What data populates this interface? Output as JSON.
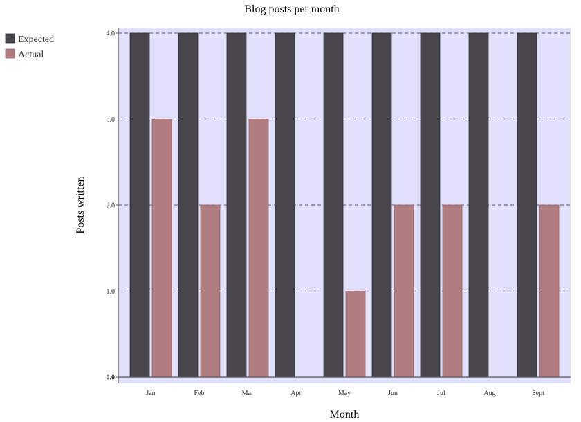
{
  "chart_data": {
    "type": "bar",
    "title": "Blog posts per month",
    "xlabel": "Month",
    "ylabel": "Posts written",
    "categories": [
      "Jan",
      "Feb",
      "Mar",
      "Apr",
      "May",
      "Jun",
      "Jul",
      "Aug",
      "Sept"
    ],
    "series": [
      {
        "name": "Expected",
        "color": "#48464c",
        "values": [
          4,
          4,
          4,
          4,
          4,
          4,
          4,
          4,
          4
        ]
      },
      {
        "name": "Actual",
        "color": "#b07d80",
        "values": [
          3,
          2,
          3,
          0,
          1,
          2,
          2,
          0,
          2
        ]
      }
    ],
    "ylim": [
      0,
      4
    ],
    "yticks": [
      "0.0",
      "1.0",
      "2.0",
      "3.0",
      "4.0"
    ],
    "grid": true,
    "legend_position": "top-left",
    "plot_background": "#e1e1fb"
  }
}
